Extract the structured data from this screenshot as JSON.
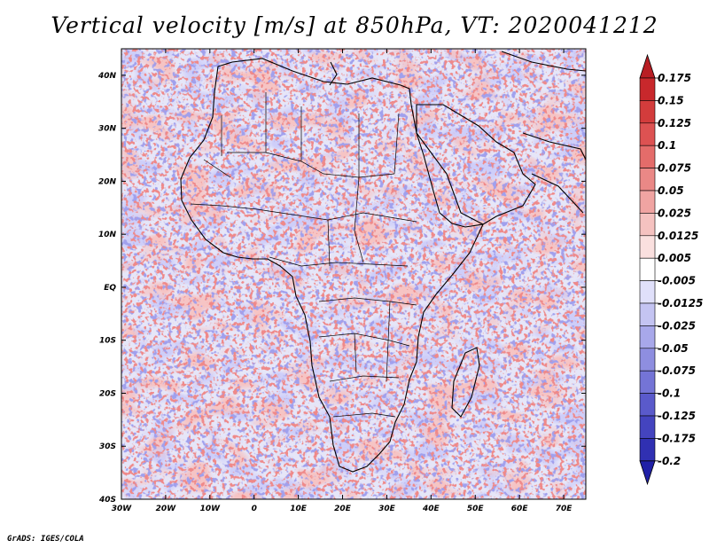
{
  "title": "Vertical velocity [m/s] at 850hPa, VT: 2020041212",
  "footer": "GrADS: IGES/COLA",
  "chart_data": {
    "type": "heatmap",
    "variable": "Vertical velocity",
    "units": "m/s",
    "level": "850hPa",
    "valid_time": "2020041212",
    "projection": "latlon",
    "lon_range": [
      -30,
      75
    ],
    "lat_range": [
      -40,
      45
    ],
    "x_ticks": [
      {
        "value": -30,
        "label": "30W"
      },
      {
        "value": -20,
        "label": "20W"
      },
      {
        "value": -10,
        "label": "10W"
      },
      {
        "value": 0,
        "label": "0"
      },
      {
        "value": 10,
        "label": "10E"
      },
      {
        "value": 20,
        "label": "20E"
      },
      {
        "value": 30,
        "label": "30E"
      },
      {
        "value": 40,
        "label": "40E"
      },
      {
        "value": 50,
        "label": "50E"
      },
      {
        "value": 60,
        "label": "60E"
      },
      {
        "value": 70,
        "label": "70E"
      }
    ],
    "y_ticks": [
      {
        "value": 40,
        "label": "40N"
      },
      {
        "value": 30,
        "label": "30N"
      },
      {
        "value": 20,
        "label": "20N"
      },
      {
        "value": 10,
        "label": "10N"
      },
      {
        "value": 0,
        "label": "EQ"
      },
      {
        "value": -10,
        "label": "10S"
      },
      {
        "value": -20,
        "label": "20S"
      },
      {
        "value": -30,
        "label": "30S"
      },
      {
        "value": -40,
        "label": "40S"
      }
    ],
    "colorbar": {
      "labels": [
        "0.175",
        "0.15",
        "0.125",
        "0.1",
        "0.075",
        "0.05",
        "0.025",
        "0.0125",
        "0.005",
        "-0.005",
        "-0.0125",
        "-0.025",
        "-0.05",
        "-0.075",
        "-0.1",
        "-0.125",
        "-0.175",
        "-0.2"
      ],
      "colors": [
        "#b81e24",
        "#c8282c",
        "#d33c3c",
        "#dd5252",
        "#e46c6a",
        "#ea8886",
        "#f0a4a2",
        "#f5c2c0",
        "#fae0df",
        "#ffffff",
        "#e0e0fa",
        "#c4c4f2",
        "#a8a8ea",
        "#8e8ee0",
        "#7474d6",
        "#5a5acb",
        "#4444bf",
        "#3030b2",
        "#2020a6"
      ]
    }
  }
}
